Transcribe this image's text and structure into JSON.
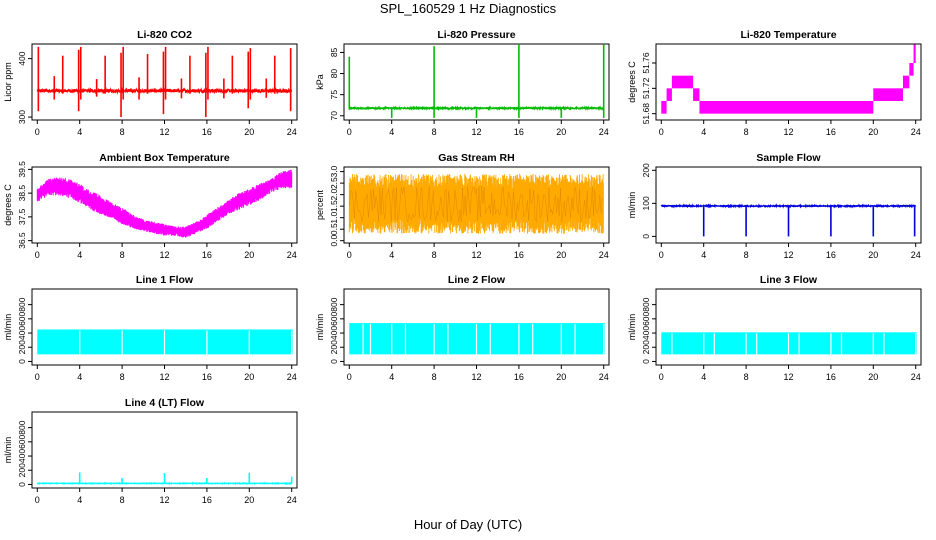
{
  "figure": {
    "title": "SPL_160529  1 Hz Diagnostics",
    "x_axis_title": "Hour of Day (UTC)",
    "x_ticks": [
      0,
      4,
      8,
      12,
      16,
      20,
      24
    ]
  },
  "chart_data": [
    {
      "type": "line",
      "title": "Li-820 CO2",
      "ylabel": "Licor ppm",
      "color": "#ff0000",
      "xlim": [
        -0.5,
        24.5
      ],
      "ylim": [
        295,
        425
      ],
      "yticks": [
        300,
        400
      ],
      "yticklabels": [
        "300",
        "400"
      ],
      "x_ticks": [
        0,
        4,
        8,
        12,
        16,
        20,
        24
      ],
      "style": "baseline-with-spikes",
      "baseline": 345,
      "noise": 3,
      "spikes": [
        {
          "x": 0.1,
          "lo": 310,
          "hi": 420
        },
        {
          "x": 1.6,
          "lo": 330,
          "hi": 370
        },
        {
          "x": 2.4,
          "lo": 340,
          "hi": 405
        },
        {
          "x": 3.9,
          "lo": 310,
          "hi": 415
        },
        {
          "x": 4.1,
          "lo": 330,
          "hi": 420
        },
        {
          "x": 5.6,
          "lo": 335,
          "hi": 365
        },
        {
          "x": 6.4,
          "lo": 340,
          "hi": 405
        },
        {
          "x": 7.9,
          "lo": 300,
          "hi": 410
        },
        {
          "x": 8.1,
          "lo": 330,
          "hi": 420
        },
        {
          "x": 9.6,
          "lo": 330,
          "hi": 368
        },
        {
          "x": 10.4,
          "lo": 340,
          "hi": 408
        },
        {
          "x": 11.9,
          "lo": 305,
          "hi": 412
        },
        {
          "x": 12.1,
          "lo": 330,
          "hi": 420
        },
        {
          "x": 13.6,
          "lo": 332,
          "hi": 366
        },
        {
          "x": 14.4,
          "lo": 340,
          "hi": 405
        },
        {
          "x": 15.9,
          "lo": 300,
          "hi": 410
        },
        {
          "x": 16.1,
          "lo": 330,
          "hi": 420
        },
        {
          "x": 17.6,
          "lo": 332,
          "hi": 366
        },
        {
          "x": 18.4,
          "lo": 340,
          "hi": 405
        },
        {
          "x": 19.9,
          "lo": 315,
          "hi": 412
        },
        {
          "x": 20.1,
          "lo": 330,
          "hi": 418
        },
        {
          "x": 21.6,
          "lo": 333,
          "hi": 366
        },
        {
          "x": 22.4,
          "lo": 340,
          "hi": 405
        },
        {
          "x": 23.9,
          "lo": 310,
          "hi": 418
        }
      ]
    },
    {
      "type": "line",
      "title": "Li-820 Pressure",
      "ylabel": "kPa",
      "color": "#00bb00",
      "xlim": [
        -0.5,
        24.5
      ],
      "ylim": [
        69,
        87
      ],
      "yticks": [
        70,
        75,
        80,
        85
      ],
      "yticklabels": [
        "70",
        "75",
        "80",
        "85"
      ],
      "x_ticks": [
        0,
        4,
        8,
        12,
        16,
        20,
        24
      ],
      "style": "baseline-with-spikes",
      "baseline": 71.8,
      "noise": 0.15,
      "spikes": [
        {
          "x": 0.0,
          "lo": 71.5,
          "hi": 84
        },
        {
          "x": 4.0,
          "lo": 69.5,
          "hi": 72
        },
        {
          "x": 8.0,
          "lo": 69.5,
          "hi": 86.5
        },
        {
          "x": 12.0,
          "lo": 69.5,
          "hi": 72
        },
        {
          "x": 16.0,
          "lo": 69.5,
          "hi": 86.8
        },
        {
          "x": 20.0,
          "lo": 69.5,
          "hi": 72
        },
        {
          "x": 24.0,
          "lo": 69.5,
          "hi": 86.8
        }
      ]
    },
    {
      "type": "line",
      "title": "Li-820 Temperature",
      "ylabel": "degrees C",
      "color": "#ff00ff",
      "xlim": [
        -0.5,
        24.5
      ],
      "ylim": [
        51.67,
        51.79
      ],
      "yticks": [
        51.68,
        51.72,
        51.76
      ],
      "yticklabels": [
        "51.68",
        "51.72",
        "51.76"
      ],
      "x_ticks": [
        0,
        4,
        8,
        12,
        16,
        20,
        24
      ],
      "style": "step-band",
      "steps": [
        {
          "x0": 0.0,
          "x1": 0.5,
          "lo": 51.68,
          "hi": 51.7
        },
        {
          "x0": 0.5,
          "x1": 1.0,
          "lo": 51.7,
          "hi": 51.72
        },
        {
          "x0": 1.0,
          "x1": 3.0,
          "lo": 51.72,
          "hi": 51.74
        },
        {
          "x0": 3.0,
          "x1": 3.6,
          "lo": 51.7,
          "hi": 51.72
        },
        {
          "x0": 3.6,
          "x1": 20.0,
          "lo": 51.68,
          "hi": 51.7
        },
        {
          "x0": 20.0,
          "x1": 22.8,
          "lo": 51.7,
          "hi": 51.72
        },
        {
          "x0": 22.8,
          "x1": 23.4,
          "lo": 51.72,
          "hi": 51.74
        },
        {
          "x0": 23.4,
          "x1": 23.8,
          "lo": 51.74,
          "hi": 51.76
        },
        {
          "x0": 23.8,
          "x1": 24.0,
          "lo": 51.76,
          "hi": 51.79
        }
      ]
    },
    {
      "type": "line",
      "title": "Ambient Box Temperature",
      "ylabel": "degrees C",
      "color": "#ff00ff",
      "xlim": [
        -0.5,
        24.5
      ],
      "ylim": [
        36.4,
        39.6
      ],
      "yticks": [
        36.5,
        37.5,
        38.5,
        39.5
      ],
      "yticklabels": [
        "36.5",
        "37.5",
        "38.5",
        "39.5"
      ],
      "x_ticks": [
        0,
        4,
        8,
        12,
        16,
        20,
        24
      ],
      "style": "envelope-curve",
      "curve": {
        "x": [
          0,
          1,
          2,
          3,
          4,
          5,
          6,
          7,
          8,
          9,
          10,
          11,
          12,
          13,
          14,
          15,
          16,
          17,
          18,
          19,
          20,
          21,
          22,
          23,
          24
        ],
        "lo": [
          38.1,
          38.4,
          38.4,
          38.3,
          38.1,
          37.8,
          37.6,
          37.4,
          37.2,
          37.0,
          36.9,
          36.8,
          36.7,
          36.7,
          36.6,
          36.8,
          37.0,
          37.3,
          37.6,
          37.8,
          38.0,
          38.2,
          38.5,
          38.7,
          38.7
        ],
        "hi": [
          38.7,
          39.1,
          39.2,
          39.1,
          38.9,
          38.6,
          38.4,
          38.1,
          37.9,
          37.6,
          37.4,
          37.3,
          37.2,
          37.1,
          37.1,
          37.3,
          37.6,
          37.9,
          38.2,
          38.5,
          38.7,
          38.9,
          39.1,
          39.4,
          39.5
        ]
      }
    },
    {
      "type": "line",
      "title": "Gas Stream RH",
      "ylabel": "percent",
      "color": "#ffaa00",
      "xlim": [
        -0.5,
        24.5
      ],
      "ylim": [
        -0.1,
        3.2
      ],
      "yticks": [
        0.0,
        0.5,
        1.0,
        1.5,
        2.0,
        2.5,
        3.0
      ],
      "yticklabels": [
        "0.0",
        "0.5",
        "1.0",
        "1.5",
        "2.0",
        "2.5",
        "3.0"
      ],
      "x_ticks": [
        0,
        4,
        8,
        12,
        16,
        20,
        24
      ],
      "style": "noise-band",
      "band": {
        "lo": 0.3,
        "hi": 2.9,
        "core_lo": 0.8,
        "core_hi": 2.4
      }
    },
    {
      "type": "line",
      "title": "Sample Flow",
      "ylabel": "ml/min",
      "color": "#0000dd",
      "xlim": [
        -0.5,
        24.5
      ],
      "ylim": [
        -20,
        210
      ],
      "yticks": [
        0,
        100,
        200
      ],
      "yticklabels": [
        "0",
        "100",
        "200"
      ],
      "x_ticks": [
        0,
        4,
        8,
        12,
        16,
        20,
        24
      ],
      "style": "baseline-with-spikes",
      "baseline": 92,
      "noise": 1.5,
      "spikes": [
        {
          "x": 4.0,
          "lo": 0,
          "hi": 92
        },
        {
          "x": 8.0,
          "lo": 0,
          "hi": 92
        },
        {
          "x": 12.0,
          "lo": 0,
          "hi": 92
        },
        {
          "x": 16.0,
          "lo": 0,
          "hi": 92
        },
        {
          "x": 20.0,
          "lo": 0,
          "hi": 92
        },
        {
          "x": 23.9,
          "lo": 0,
          "hi": 92
        }
      ]
    },
    {
      "type": "line",
      "title": "Line 1 Flow",
      "ylabel": "ml/min",
      "color": "#00ffff",
      "xlim": [
        -0.5,
        24.5
      ],
      "ylim": [
        -50,
        1020
      ],
      "yticks": [
        0,
        200,
        400,
        600,
        800
      ],
      "yticklabels": [
        "0",
        "200",
        "400",
        "600",
        "800"
      ],
      "x_ticks": [
        0,
        4,
        8,
        12,
        16,
        20,
        24
      ],
      "style": "block-band",
      "band": {
        "lo": 100,
        "hi": 450,
        "x0": 0,
        "x1": 24.1
      },
      "gaps": [
        4.0,
        8.0,
        12.0,
        16.0,
        20.0,
        24.0
      ]
    },
    {
      "type": "line",
      "title": "Line 2 Flow",
      "ylabel": "ml/min",
      "color": "#00ffff",
      "xlim": [
        -0.5,
        24.5
      ],
      "ylim": [
        -50,
        1020
      ],
      "yticks": [
        0,
        200,
        400,
        600,
        800
      ],
      "yticklabels": [
        "0",
        "200",
        "400",
        "600",
        "800"
      ],
      "x_ticks": [
        0,
        4,
        8,
        12,
        16,
        20,
        24
      ],
      "style": "block-band",
      "band": {
        "lo": 100,
        "hi": 540,
        "x0": 0,
        "x1": 24.1
      },
      "gaps": [
        1.3,
        2.0,
        4.0,
        5.3,
        8.0,
        9.3,
        12.0,
        13.3,
        16.0,
        17.3,
        20.0,
        21.3,
        24.0
      ]
    },
    {
      "type": "line",
      "title": "Line 3 Flow",
      "ylabel": "ml/min",
      "color": "#00ffff",
      "xlim": [
        -0.5,
        24.5
      ],
      "ylim": [
        -50,
        1020
      ],
      "yticks": [
        0,
        200,
        400,
        600,
        800
      ],
      "yticklabels": [
        "0",
        "200",
        "400",
        "600",
        "800"
      ],
      "x_ticks": [
        0,
        4,
        8,
        12,
        16,
        20,
        24
      ],
      "style": "block-band",
      "band": {
        "lo": 100,
        "hi": 410,
        "x0": 0,
        "x1": 24.1
      },
      "gaps": [
        1.0,
        4.0,
        5.0,
        8.0,
        9.0,
        12.0,
        13.0,
        16.0,
        17.0,
        20.0,
        21.0,
        24.0
      ]
    },
    {
      "type": "line",
      "title": "Line 4 (LT) Flow",
      "ylabel": "ml/min",
      "color": "#00ffff",
      "xlim": [
        -0.5,
        24.5
      ],
      "ylim": [
        -50,
        1020
      ],
      "yticks": [
        0,
        200,
        400,
        600,
        800
      ],
      "yticklabels": [
        "0",
        "200",
        "400",
        "600",
        "800"
      ],
      "x_ticks": [
        0,
        4,
        8,
        12,
        16,
        20,
        24
      ],
      "style": "baseline-with-spikes",
      "baseline": 15,
      "noise": 4,
      "spikes": [
        {
          "x": 4.0,
          "lo": 15,
          "hi": 170
        },
        {
          "x": 8.0,
          "lo": 15,
          "hi": 90
        },
        {
          "x": 12.0,
          "lo": 15,
          "hi": 160
        },
        {
          "x": 16.0,
          "lo": 15,
          "hi": 90
        },
        {
          "x": 20.0,
          "lo": 15,
          "hi": 165
        },
        {
          "x": 24.0,
          "lo": 15,
          "hi": 110
        }
      ]
    }
  ]
}
